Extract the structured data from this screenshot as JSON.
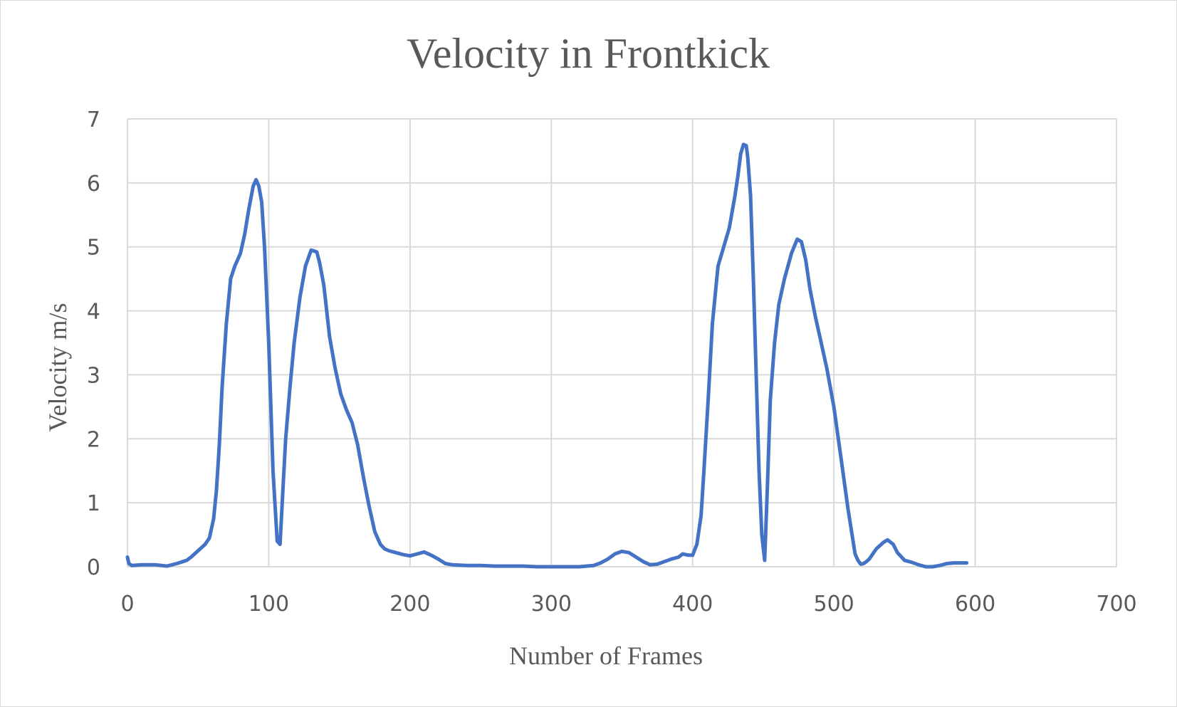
{
  "chart_data": {
    "type": "line",
    "title": "Velocity in Frontkick",
    "xlabel": "Number of Frames",
    "ylabel": "Velocity m/s",
    "xlim": [
      0,
      700
    ],
    "ylim": [
      0,
      7
    ],
    "xticks": [
      "0",
      "100",
      "200",
      "300",
      "400",
      "500",
      "600",
      "700"
    ],
    "yticks": [
      "0",
      "1",
      "2",
      "3",
      "4",
      "5",
      "6",
      "7"
    ],
    "grid": true,
    "legend": "none",
    "series": [
      {
        "name": "Velocity",
        "color": "#4472c4",
        "x": [
          0,
          1,
          3,
          10,
          20,
          28,
          35,
          42,
          45,
          50,
          55,
          58,
          61,
          63,
          65,
          67,
          70,
          73,
          76,
          80,
          83,
          86,
          89,
          91,
          93,
          95,
          97,
          100,
          103,
          106,
          108,
          110,
          112,
          115,
          118,
          122,
          126,
          130,
          134,
          136,
          139,
          141,
          143,
          147,
          151,
          155,
          159,
          163,
          167,
          171,
          175,
          179,
          182,
          185,
          190,
          195,
          200,
          205,
          210,
          215,
          220,
          225,
          230,
          240,
          250,
          260,
          270,
          280,
          290,
          300,
          310,
          320,
          330,
          335,
          340,
          345,
          350,
          355,
          360,
          365,
          370,
          375,
          380,
          385,
          390,
          393,
          397,
          400,
          403,
          406,
          408,
          411,
          414,
          418,
          422,
          426,
          430,
          432,
          434,
          436,
          438,
          439,
          441,
          443,
          445,
          447,
          449,
          451,
          453,
          455,
          458,
          461,
          465,
          470,
          474,
          477,
          480,
          483,
          487,
          491,
          495,
          500,
          505,
          510,
          515,
          517,
          519,
          521,
          523,
          525,
          530,
          535,
          538,
          542,
          545,
          550,
          555,
          560,
          565,
          570,
          575,
          580,
          585,
          590,
          594
        ],
        "values": [
          0.15,
          0.05,
          0.02,
          0.03,
          0.03,
          0.01,
          0.05,
          0.1,
          0.15,
          0.25,
          0.35,
          0.45,
          0.75,
          1.2,
          1.9,
          2.8,
          3.8,
          4.5,
          4.7,
          4.9,
          5.2,
          5.6,
          5.95,
          6.05,
          5.95,
          5.7,
          5.0,
          3.5,
          1.5,
          0.4,
          0.35,
          1.2,
          2.0,
          2.8,
          3.5,
          4.2,
          4.7,
          4.95,
          4.92,
          4.75,
          4.4,
          4.0,
          3.6,
          3.1,
          2.7,
          2.45,
          2.25,
          1.9,
          1.4,
          0.95,
          0.55,
          0.35,
          0.28,
          0.25,
          0.22,
          0.19,
          0.17,
          0.2,
          0.23,
          0.18,
          0.12,
          0.05,
          0.03,
          0.02,
          0.02,
          0.01,
          0.01,
          0.01,
          0.0,
          0.0,
          0.0,
          0.0,
          0.02,
          0.06,
          0.12,
          0.2,
          0.24,
          0.22,
          0.15,
          0.08,
          0.03,
          0.04,
          0.08,
          0.12,
          0.15,
          0.2,
          0.18,
          0.18,
          0.35,
          0.8,
          1.5,
          2.6,
          3.8,
          4.7,
          5.0,
          5.3,
          5.8,
          6.1,
          6.45,
          6.6,
          6.58,
          6.4,
          5.8,
          4.5,
          3.0,
          1.5,
          0.5,
          0.1,
          1.3,
          2.6,
          3.5,
          4.1,
          4.5,
          4.9,
          5.12,
          5.08,
          4.8,
          4.35,
          3.9,
          3.5,
          3.1,
          2.5,
          1.7,
          0.9,
          0.2,
          0.1,
          0.04,
          0.05,
          0.08,
          0.12,
          0.28,
          0.38,
          0.42,
          0.35,
          0.22,
          0.1,
          0.07,
          0.03,
          0.0,
          0.0,
          0.02,
          0.05,
          0.06,
          0.06,
          0.06
        ]
      }
    ]
  }
}
